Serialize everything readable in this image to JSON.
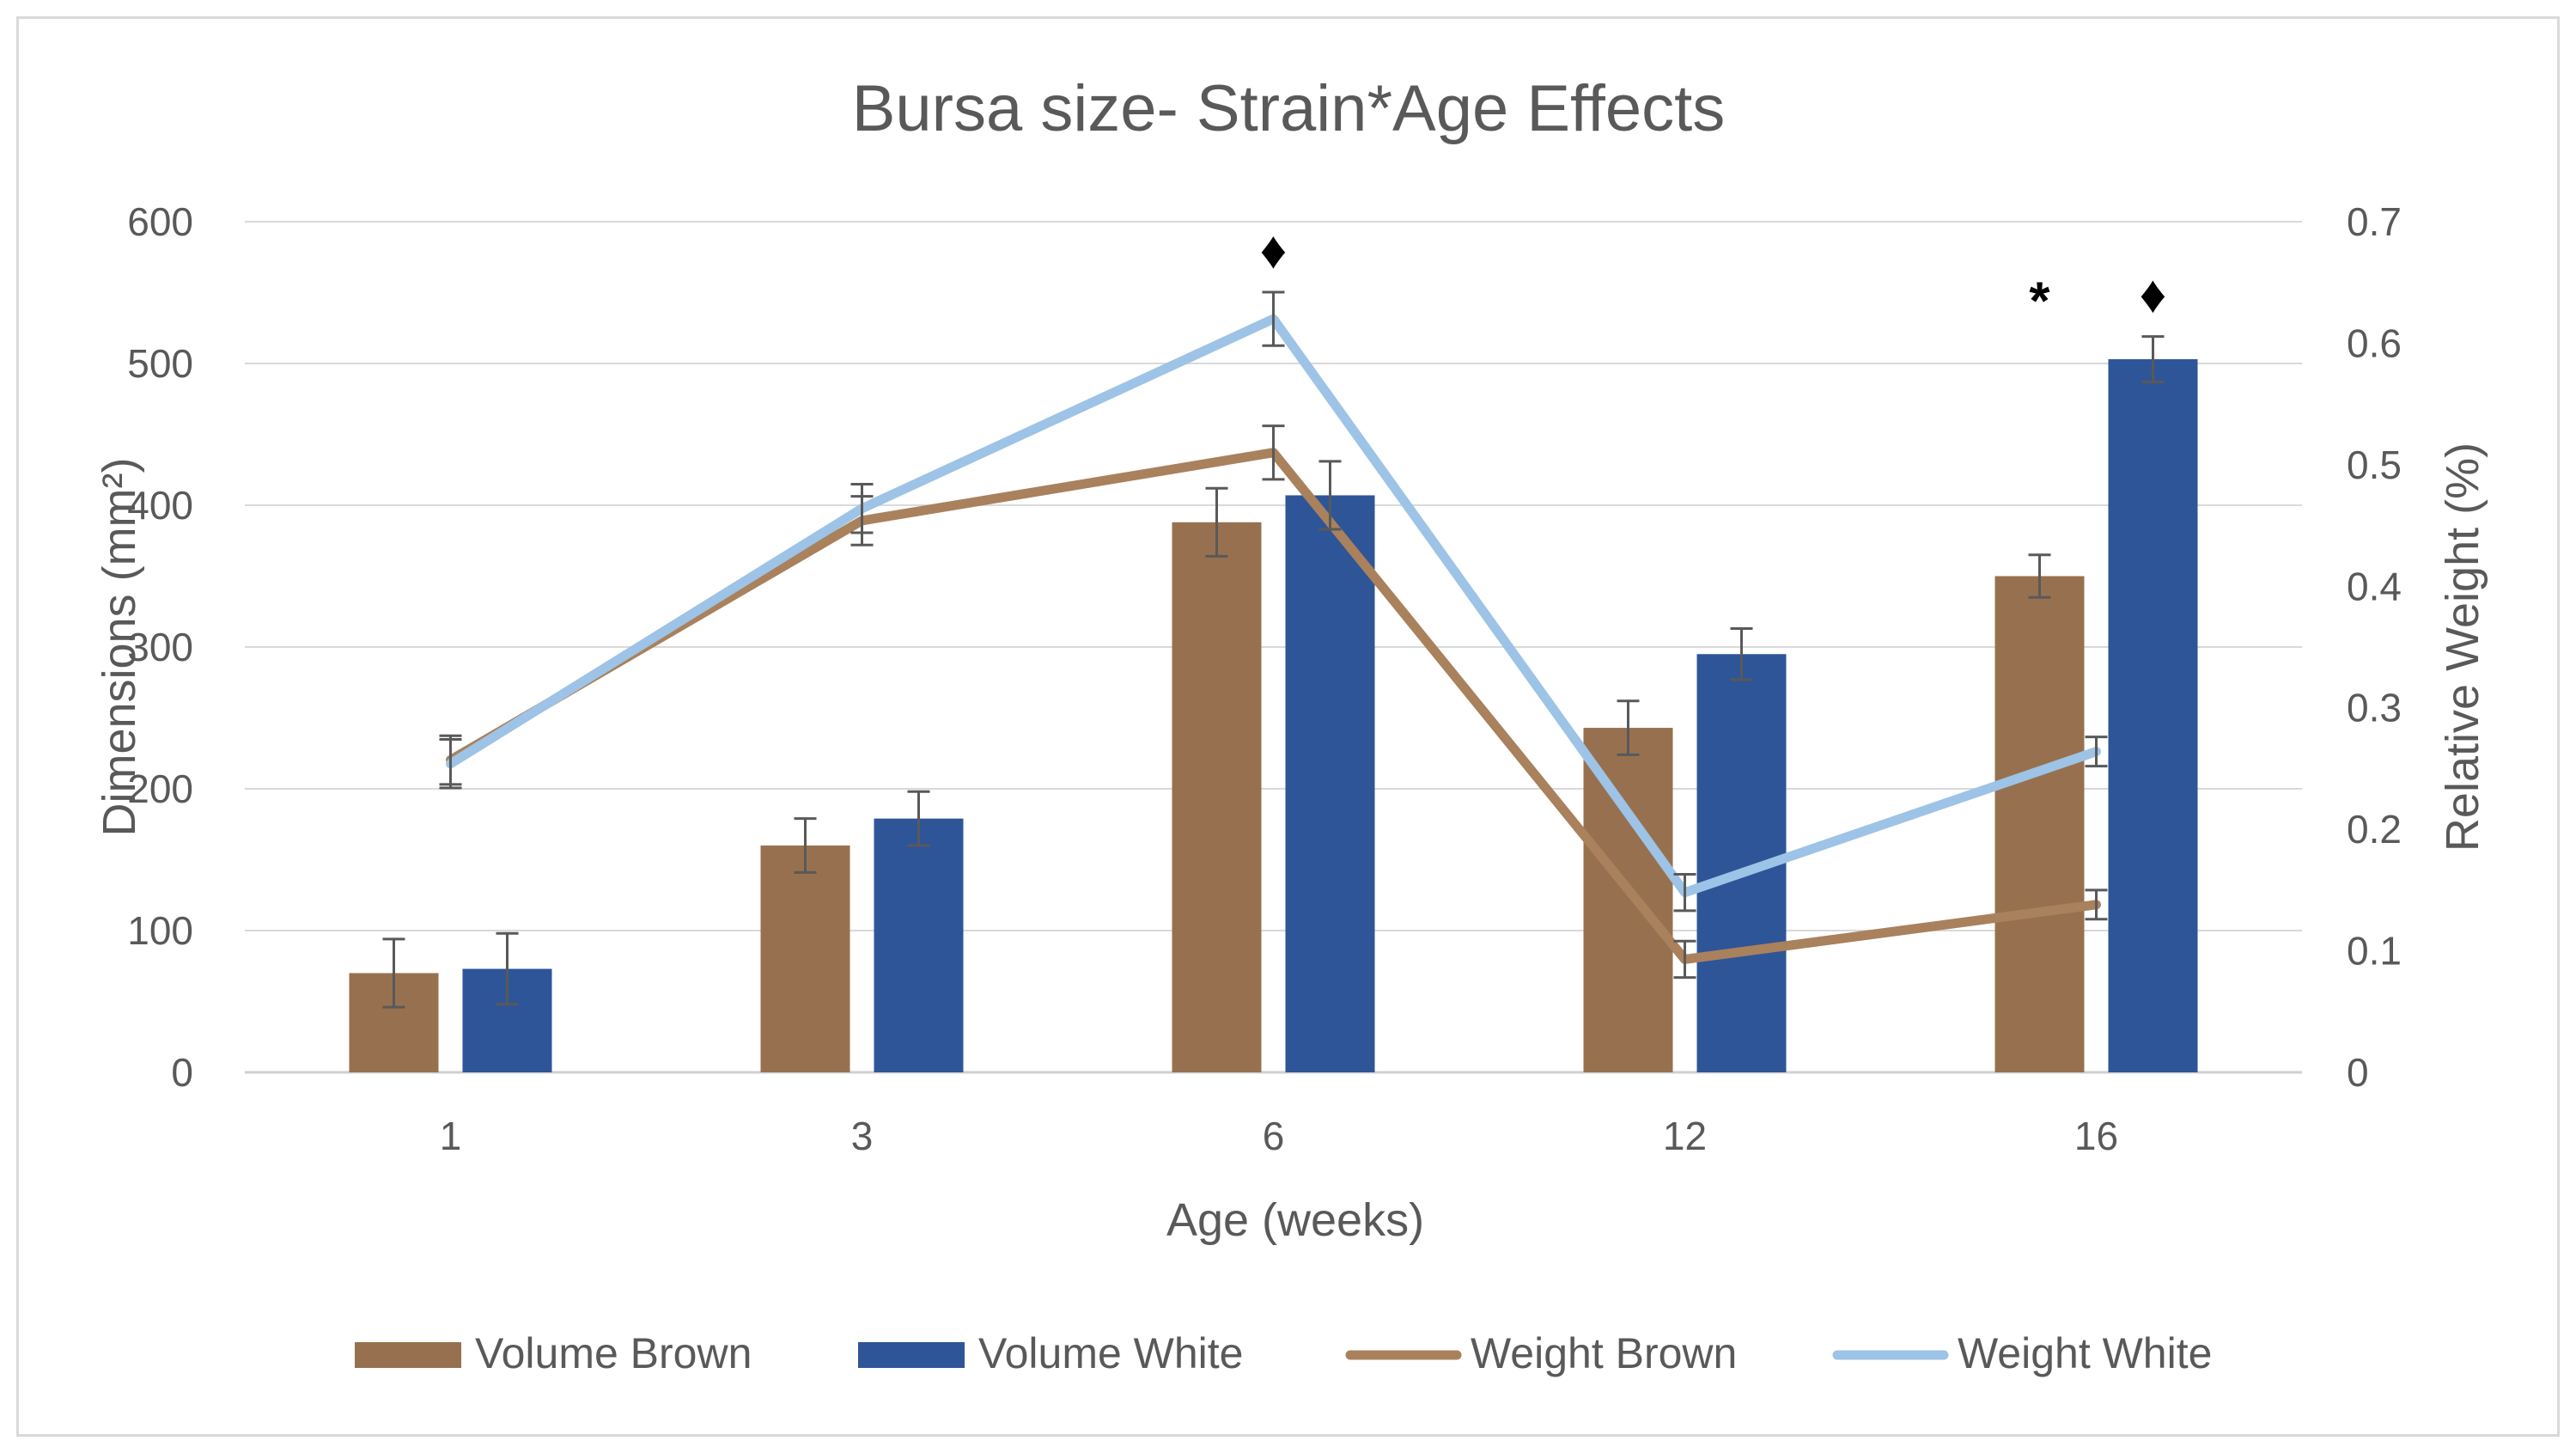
{
  "chart_data": {
    "type": "bar",
    "title": "Bursa size- Strain*Age Effects",
    "xlabel": "Age (weeks)",
    "ylabel": "Dimensions (mm²)",
    "y2label": "Relative Weight (%)",
    "categories": [
      "1",
      "3",
      "6",
      "12",
      "16"
    ],
    "ylim": [
      0,
      600
    ],
    "y2lim": [
      0,
      0.7
    ],
    "yticks": [
      "0",
      "100",
      "200",
      "300",
      "400",
      "500",
      "600"
    ],
    "y2ticks": [
      "0",
      "0.1",
      "0.2",
      "0.3",
      "0.4",
      "0.5",
      "0.6",
      "0.7"
    ],
    "grid": true,
    "legend_position": "bottom",
    "series": [
      {
        "name": "Volume Brown",
        "kind": "bar",
        "axis": "left",
        "color": "#97714f",
        "values": [
          70,
          160,
          388,
          243,
          350
        ],
        "errors": [
          24,
          19,
          24,
          19,
          15
        ]
      },
      {
        "name": "Volume White",
        "kind": "bar",
        "axis": "left",
        "color": "#2e5597",
        "values": [
          73,
          179,
          407,
          295,
          503
        ],
        "errors": [
          25,
          19,
          24,
          18,
          16
        ]
      },
      {
        "name": "Weight Brown",
        "kind": "line",
        "axis": "right",
        "color": "#a9815c",
        "values": [
          0.257,
          0.454,
          0.51,
          0.093,
          0.138
        ],
        "errors": [
          0.02,
          0.02,
          0.022,
          0.015,
          0.012
        ]
      },
      {
        "name": "Weight White",
        "kind": "line",
        "axis": "right",
        "color": "#9dc3e6",
        "values": [
          0.254,
          0.464,
          0.62,
          0.148,
          0.264
        ],
        "errors": [
          0.02,
          0.02,
          0.022,
          0.015,
          0.012
        ]
      }
    ],
    "annotations": [
      {
        "category": "6",
        "series": "center",
        "text": "♦"
      },
      {
        "category": "16",
        "series": "Volume Brown",
        "text": "*"
      },
      {
        "category": "16",
        "series": "Volume White",
        "text": "♦"
      }
    ]
  }
}
